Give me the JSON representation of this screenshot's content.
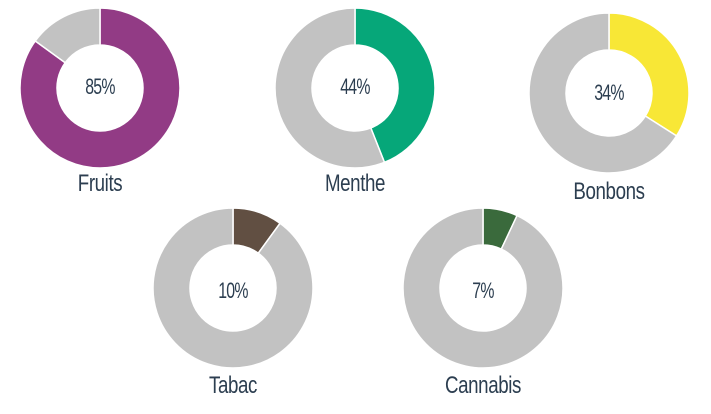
{
  "chart_data": {
    "type": "pie",
    "subtype": "donut",
    "title": "",
    "legend": "none",
    "remainder_color": "#c2c2c2",
    "charts": [
      {
        "label": "Fruits",
        "value": 85,
        "display": "85%",
        "color": "#923b85"
      },
      {
        "label": "Menthe",
        "value": 44,
        "display": "44%",
        "color": "#06a779"
      },
      {
        "label": "Bonbons",
        "value": 34,
        "display": "34%",
        "color": "#f8e736"
      },
      {
        "label": "Tabac",
        "value": 10,
        "display": "10%",
        "color": "#614f42"
      },
      {
        "label": "Cannabis",
        "value": 7,
        "display": "7%",
        "color": "#3a6a3c"
      }
    ]
  }
}
